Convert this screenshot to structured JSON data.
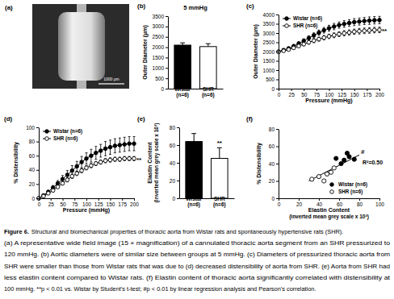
{
  "image": {
    "panel": "(a)",
    "scale_bar": "1000 μm"
  },
  "chart_data": [
    {
      "type": "bar",
      "panel": "(b)",
      "title": "5 mmHg",
      "y_label": "Outer Diameter (μm)",
      "categories": [
        "Wistar\n(n=6)",
        "SHR\n(n=6)"
      ],
      "values": [
        2100,
        2030
      ],
      "errors": [
        110,
        140
      ],
      "colors": [
        "#000000",
        "#ffffff"
      ],
      "ylim": [
        0,
        3500
      ],
      "yticks": [
        0,
        500,
        1000,
        1500,
        2000,
        2500,
        3000,
        3500
      ]
    },
    {
      "type": "line",
      "panel": "(c)",
      "x_label": "Pressure (mmHg)",
      "y_label": "Outer Diameter (μm)",
      "x": [
        0,
        10,
        20,
        30,
        40,
        50,
        60,
        70,
        80,
        90,
        100,
        110,
        120,
        130,
        140,
        150,
        160,
        170,
        180,
        190,
        200
      ],
      "xlim": [
        0,
        200
      ],
      "xticks": [
        0,
        25,
        50,
        75,
        100,
        125,
        150,
        175,
        200
      ],
      "ylim": [
        0,
        4000
      ],
      "yticks": [
        0,
        500,
        1000,
        1500,
        2000,
        2500,
        3000,
        3500,
        4000
      ],
      "legend": "upper left",
      "annotations": [
        "**"
      ],
      "series": [
        {
          "name": "Wistar (n=6)",
          "color": "#000000",
          "marker": "circle",
          "values": [
            2000,
            2080,
            2170,
            2290,
            2430,
            2580,
            2730,
            2880,
            3020,
            3150,
            3260,
            3350,
            3430,
            3490,
            3540,
            3590,
            3620,
            3650,
            3670,
            3690,
            3700
          ],
          "errors": [
            60,
            70,
            80,
            90,
            100,
            110,
            120,
            130,
            140,
            150,
            160,
            170,
            170,
            180,
            180,
            190,
            190,
            190,
            200,
            200,
            200
          ]
        },
        {
          "name": "SHR (n=6)",
          "color": "#000000",
          "marker": "open_circle",
          "values": [
            1980,
            2040,
            2110,
            2200,
            2300,
            2400,
            2500,
            2590,
            2670,
            2750,
            2820,
            2880,
            2940,
            2990,
            3030,
            3070,
            3100,
            3120,
            3140,
            3160,
            3170
          ],
          "errors": [
            50,
            60,
            60,
            70,
            80,
            90,
            100,
            110,
            110,
            120,
            120,
            130,
            130,
            140,
            140,
            140,
            150,
            150,
            150,
            150,
            150
          ]
        }
      ]
    },
    {
      "type": "line",
      "panel": "(d)",
      "x_label": "Pressure (mmHg)",
      "y_label": "% Distensibility",
      "x": [
        0,
        10,
        20,
        30,
        40,
        50,
        60,
        70,
        80,
        90,
        100,
        110,
        120,
        130,
        140,
        150,
        160,
        170,
        180,
        190,
        200
      ],
      "xlim": [
        0,
        200
      ],
      "xticks": [
        0,
        25,
        50,
        75,
        100,
        125,
        150,
        175,
        200
      ],
      "ylim": [
        0,
        100
      ],
      "yticks": [
        0,
        20,
        40,
        60,
        80,
        100
      ],
      "legend": "upper left",
      "annotations": [
        "**"
      ],
      "series": [
        {
          "name": "Wistar (n=6)",
          "color": "#000000",
          "marker": "circle",
          "values": [
            0,
            4,
            9,
            15,
            21,
            27,
            33,
            39,
            45,
            51,
            56,
            60,
            64,
            67,
            70,
            72,
            74,
            75,
            76,
            77,
            77
          ],
          "errors": [
            0,
            1,
            2,
            3,
            4,
            5,
            6,
            7,
            7,
            8,
            8,
            9,
            9,
            9,
            10,
            10,
            10,
            10,
            10,
            10,
            10
          ]
        },
        {
          "name": "SHR (n=6)",
          "color": "#000000",
          "marker": "open_circle",
          "values": [
            0,
            3,
            7,
            11,
            16,
            21,
            26,
            31,
            35,
            39,
            43,
            46,
            49,
            51,
            53,
            54,
            55,
            55,
            56,
            56,
            56
          ],
          "errors": [
            0,
            1,
            1,
            2,
            2,
            2,
            3,
            3,
            3,
            3,
            3,
            3,
            3,
            3,
            3,
            3,
            3,
            3,
            3,
            3,
            3
          ]
        }
      ]
    },
    {
      "type": "bar",
      "panel": "(e)",
      "y_label": "Elastin Content\n(inverted mean grey scale x 10³)",
      "categories": [
        "Wistar\n(n=6)",
        "SHR\n(n=6)"
      ],
      "values": [
        64,
        45
      ],
      "errors": [
        9,
        12
      ],
      "colors": [
        "#000000",
        "#ffffff"
      ],
      "ylim": [
        0,
        80
      ],
      "yticks": [
        0,
        20,
        40,
        60,
        80
      ],
      "annotations": [
        "**"
      ]
    },
    {
      "type": "scatter",
      "panel": "(f)",
      "x_label": "Elastin Content\n(inverted mean grey scale x 10³)",
      "y_label": "% Distensibility",
      "xlim": [
        0,
        100
      ],
      "xticks": [
        0,
        20,
        40,
        60,
        80,
        100
      ],
      "ylim": [
        0,
        80
      ],
      "yticks": [
        0,
        20,
        40,
        60,
        80
      ],
      "legend": "lower right",
      "annotations": [
        "#",
        "R²=0.50"
      ],
      "series": [
        {
          "name": "Wistar (n=6)",
          "color": "#000000",
          "marker": "circle",
          "x": [
            57,
            62,
            65,
            68,
            70,
            75
          ],
          "values": [
            46,
            40,
            44,
            52,
            48,
            45
          ]
        },
        {
          "name": "SHR (n=6)",
          "color": "#000000",
          "marker": "open_circle",
          "x": [
            33,
            40,
            45,
            48,
            52,
            55
          ],
          "values": [
            22,
            25,
            20,
            28,
            30,
            35
          ]
        }
      ],
      "fit": {
        "x": [
          30,
          80
        ],
        "values": [
          20,
          50
        ]
      }
    }
  ],
  "caption": {
    "label": "Figure 6.",
    "lines": [
      "Structural and biomechanical properties of thoracic aorta from Wistar rats and spontaneously hypertensive rats (SHR).",
      "(a) A representative wide field image (15 × magnification) of a cannulated thoracic aorta segment from an SHR pressurized to",
      "120 mmHg. (b) Aortic diameters were of similar size between groups at 5 mmHg. (c) Diameters of pressurized thoracic aorta from",
      "SHR were smaller than those from Wistar rats that was due to (d) decreased distensibility of aorta from SHR. (e) Aorta from SHR had",
      "less elastin content compared to Wistar rats. (f) Elastin content of thoracic aorta significantly correlated with distensibility at",
      "100 mmHg. **p < 0.01 vs. Wistar by Student's t-test; #p < 0.01 by linear regression analysis and Pearson's correlation."
    ]
  }
}
